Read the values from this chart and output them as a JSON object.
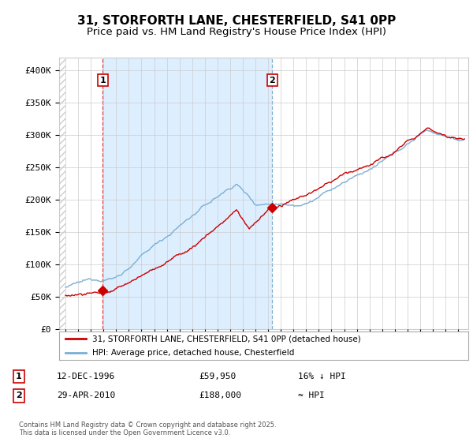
{
  "title": "31, STORFORTH LANE, CHESTERFIELD, S41 0PP",
  "subtitle": "Price paid vs. HM Land Registry's House Price Index (HPI)",
  "ylim": [
    0,
    420000
  ],
  "yticks": [
    0,
    50000,
    100000,
    150000,
    200000,
    250000,
    300000,
    350000,
    400000
  ],
  "ytick_labels": [
    "£0",
    "£50K",
    "£100K",
    "£150K",
    "£200K",
    "£250K",
    "£300K",
    "£350K",
    "£400K"
  ],
  "hpi_color": "#7bafd4",
  "price_color": "#cc0000",
  "vline1_color": "#dd4444",
  "vline2_color": "#7bafd4",
  "shade_color": "#ddeeff",
  "annotation_box_color": "#cc0000",
  "legend_line1": "31, STORFORTH LANE, CHESTERFIELD, S41 0PP (detached house)",
  "legend_line2": "HPI: Average price, detached house, Chesterfield",
  "footnote": "Contains HM Land Registry data © Crown copyright and database right 2025.\nThis data is licensed under the Open Government Licence v3.0.",
  "sale1_date": "12-DEC-1996",
  "sale1_price": "£59,950",
  "sale1_hpi": "16% ↓ HPI",
  "sale1_year": 1996.95,
  "sale1_value": 59950,
  "sale2_date": "29-APR-2010",
  "sale2_price": "£188,000",
  "sale2_hpi": "≈ HPI",
  "sale2_year": 2010.32,
  "sale2_value": 188000,
  "background_color": "#ffffff",
  "grid_color": "#cccccc",
  "title_fontsize": 11,
  "subtitle_fontsize": 9.5,
  "hatch_color": "#cccccc"
}
